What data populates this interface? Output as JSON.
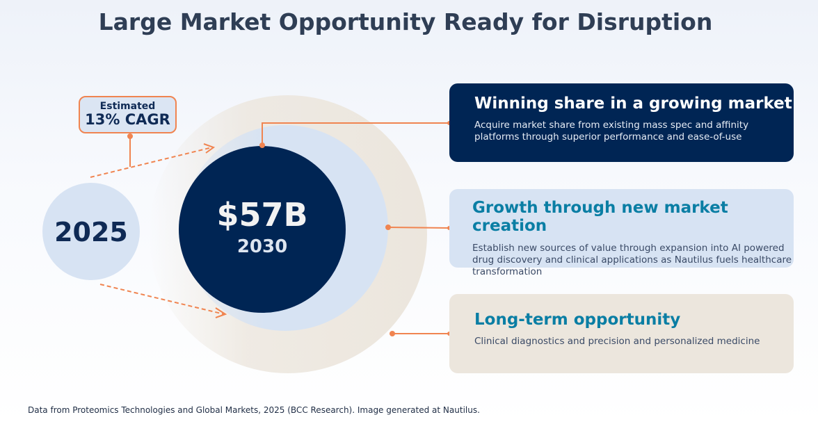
{
  "title": "Large Market Opportunity Ready for Disruption",
  "cagr": {
    "label": "Estimated",
    "value": "13% CAGR"
  },
  "current": {
    "year": "2025"
  },
  "future": {
    "value": "$57B",
    "year": "2030"
  },
  "cards": [
    {
      "title": "Winning share in a growing market",
      "body": "Acquire market share from existing mass spec and affinity platforms through superior performance and ease-of-use"
    },
    {
      "title": "Growth through new market creation",
      "body": "Establish new sources of value through expansion into AI powered drug discovery and clinical applications as Nautilus fuels healthcare transformation"
    },
    {
      "title": "Long-term opportunity",
      "body": "Clinical diagnostics and precision and personalized medicine"
    }
  ],
  "footnote": "Data from Proteomics Technologies and Global Markets, 2025 (BCC Research). Image generated at Nautilus.",
  "colors": {
    "navy": "#002554",
    "accent": "#f08450",
    "teal": "#0a7ea4",
    "light_blue": "#d7e3f3",
    "beige": "#ece6dd"
  }
}
